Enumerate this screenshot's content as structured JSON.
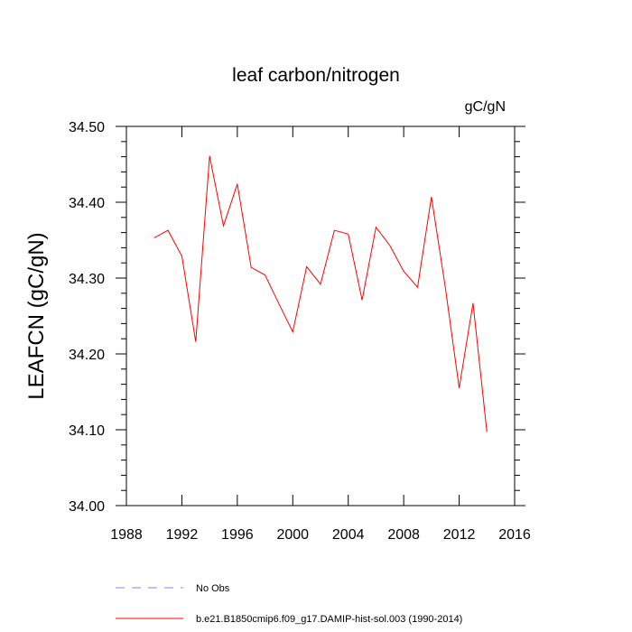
{
  "chart_data": {
    "type": "line",
    "title": "leaf carbon/nitrogen",
    "units_label": "gC/gN",
    "ylabel": "LEAFCN  (gC/gN)",
    "xlabel": "",
    "xlim": [
      1988,
      2016
    ],
    "ylim": [
      34.0,
      34.5
    ],
    "x_ticks": [
      1988,
      1992,
      1996,
      2000,
      2004,
      2008,
      2012,
      2016
    ],
    "x_tick_labels": [
      "1988",
      "1992",
      "1996",
      "2000",
      "2004",
      "2008",
      "2012",
      "2016"
    ],
    "y_ticks": [
      34.0,
      34.1,
      34.2,
      34.3,
      34.4,
      34.5
    ],
    "y_tick_labels": [
      "34.00",
      "34.10",
      "34.20",
      "34.30",
      "34.40",
      "34.50"
    ],
    "grid": false,
    "legend_position": "bottom",
    "series": [
      {
        "name": "b.e21.B1850cmip6.f09_g17.DAMIP-hist-sol.003 (1990-2014)",
        "color": "#ff0000",
        "style": "solid",
        "x": [
          1990,
          1991,
          1992,
          1993,
          1994,
          1995,
          1996,
          1997,
          1998,
          1999,
          2000,
          2001,
          2002,
          2003,
          2004,
          2005,
          2006,
          2007,
          2008,
          2009,
          2010,
          2011,
          2012,
          2013,
          2014
        ],
        "values": [
          34.353,
          34.363,
          34.329,
          34.216,
          34.461,
          34.369,
          34.424,
          34.314,
          34.304,
          34.266,
          34.229,
          34.315,
          34.292,
          34.363,
          34.358,
          34.271,
          34.367,
          34.343,
          34.309,
          34.288,
          34.407,
          34.288,
          34.155,
          34.267,
          34.097
        ]
      },
      {
        "name": "No Obs",
        "color": "#8080ff",
        "style": "dashed",
        "x": [],
        "values": []
      }
    ]
  }
}
